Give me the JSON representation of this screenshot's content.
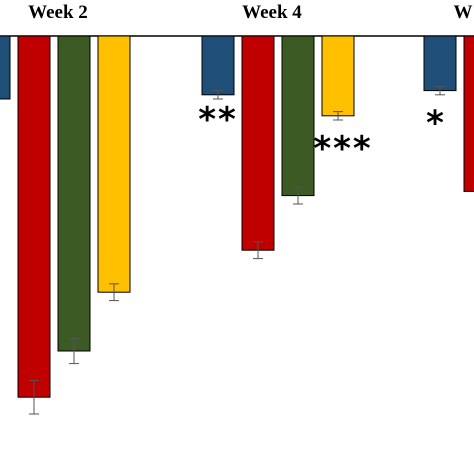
{
  "chart_data": {
    "type": "bar",
    "categories": [
      "Week 2",
      "Week 4",
      "W"
    ],
    "baseline": 0,
    "ylim": [
      -100,
      0
    ],
    "series": [
      {
        "color": "#1f4e79",
        "values": [
          -15,
          -14,
          -13
        ],
        "errors": [
          null,
          1,
          1
        ]
      },
      {
        "color": "#c00000",
        "values": [
          -86,
          -51,
          -37
        ],
        "errors": [
          4,
          2,
          null
        ]
      },
      {
        "color": "#3b5a24",
        "values": [
          -75,
          -38,
          null
        ],
        "errors": [
          3,
          2,
          null
        ]
      },
      {
        "color": "#ffc000",
        "values": [
          -61,
          -19,
          null
        ],
        "errors": [
          2,
          1,
          null
        ]
      }
    ],
    "annotations": [
      {
        "text": "*",
        "group": 0,
        "series": 0
      },
      {
        "text": "**",
        "group": 1,
        "series": 0
      },
      {
        "text": "***",
        "group": 1,
        "series": 3
      },
      {
        "text": "*",
        "group": 2,
        "series": 0
      }
    ]
  }
}
